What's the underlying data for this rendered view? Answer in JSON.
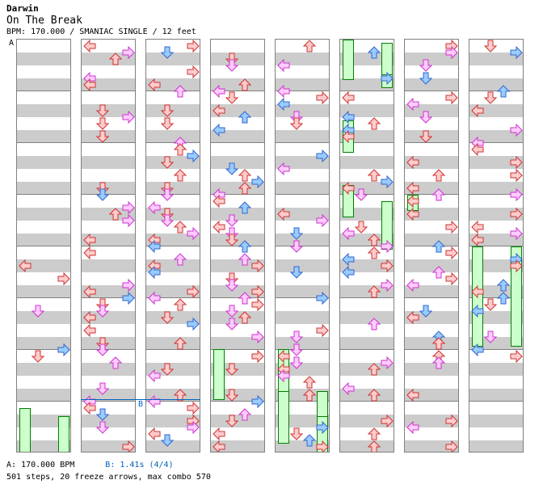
{
  "header": {
    "artist": "Darwin",
    "title": "On The Break",
    "info": "BPM: 170.000 / SMANIAC SINGLE / 12 feet"
  },
  "markers": {
    "a": "A",
    "b": "B"
  },
  "footer": {
    "bpm_a": "A: 170.000 BPM",
    "bpm_b": "B: 1.41s (4/4)",
    "stats": "501 steps, 20 freeze arrows, max combo 570"
  },
  "colors": {
    "red_fill": "#ffcccc",
    "red_stroke": "#cc3333",
    "pink_fill": "#ffccff",
    "pink_stroke": "#cc33cc",
    "blue_fill": "#99ccff",
    "blue_stroke": "#3366cc",
    "freeze_fill": "#ccffcc",
    "freeze_stroke": "#008000",
    "bpm_a": "#000000",
    "bpm_b": "#0060c0"
  },
  "columns": 8,
  "measures_per_column": 8
}
